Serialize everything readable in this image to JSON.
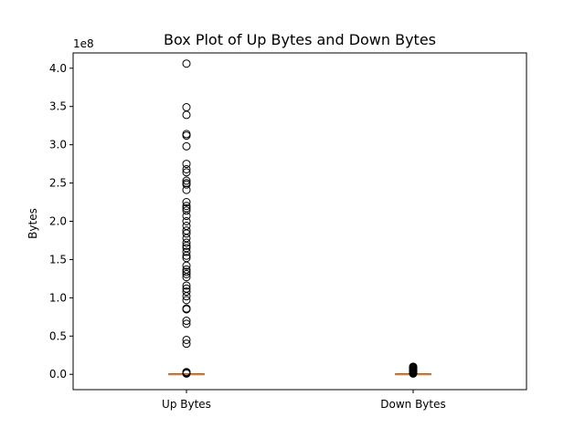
{
  "chart_data": {
    "type": "box",
    "title": "Box Plot of Up Bytes and Down Bytes",
    "xlabel": "",
    "ylabel": "Bytes",
    "y_offset_label": "1e8",
    "ylim": [
      -0.2,
      4.2
    ],
    "y_ticks": [
      0.0,
      0.5,
      1.0,
      1.5,
      2.0,
      2.5,
      3.0,
      3.5,
      4.0
    ],
    "y_tick_labels": [
      "0.0",
      "0.5",
      "1.0",
      "1.5",
      "2.0",
      "2.5",
      "3.0",
      "3.5",
      "4.0"
    ],
    "categories": [
      "Up Bytes",
      "Down Bytes"
    ],
    "boxes": [
      {
        "name": "Up Bytes",
        "q1": 0.0,
        "median": 0.0,
        "q3": 0.001,
        "whisker_low": 0.0,
        "whisker_high": 0.003,
        "outliers": [
          4.06,
          3.49,
          3.39,
          3.14,
          3.12,
          2.98,
          2.75,
          2.68,
          2.64,
          2.53,
          2.5,
          2.48,
          2.41,
          2.25,
          2.2,
          2.17,
          2.14,
          2.07,
          2.0,
          1.94,
          1.88,
          1.84,
          1.78,
          1.72,
          1.68,
          1.65,
          1.6,
          1.55,
          1.52,
          1.42,
          1.37,
          1.34,
          1.31,
          1.27,
          1.16,
          1.12,
          1.08,
          1.02,
          0.97,
          0.86,
          0.85,
          0.7,
          0.66,
          0.45,
          0.4,
          0.03,
          0.02,
          0.01
        ]
      },
      {
        "name": "Down Bytes",
        "q1": 0.0,
        "median": 0.0,
        "q3": 0.001,
        "whisker_low": 0.0,
        "whisker_high": 0.002,
        "outliers": [
          0.1,
          0.09,
          0.08,
          0.07,
          0.06,
          0.05,
          0.04,
          0.03,
          0.02,
          0.01
        ]
      }
    ],
    "colors": {
      "median": "#ff7f0e",
      "box": "#000000",
      "outlier": "#000000"
    },
    "grid": false
  }
}
